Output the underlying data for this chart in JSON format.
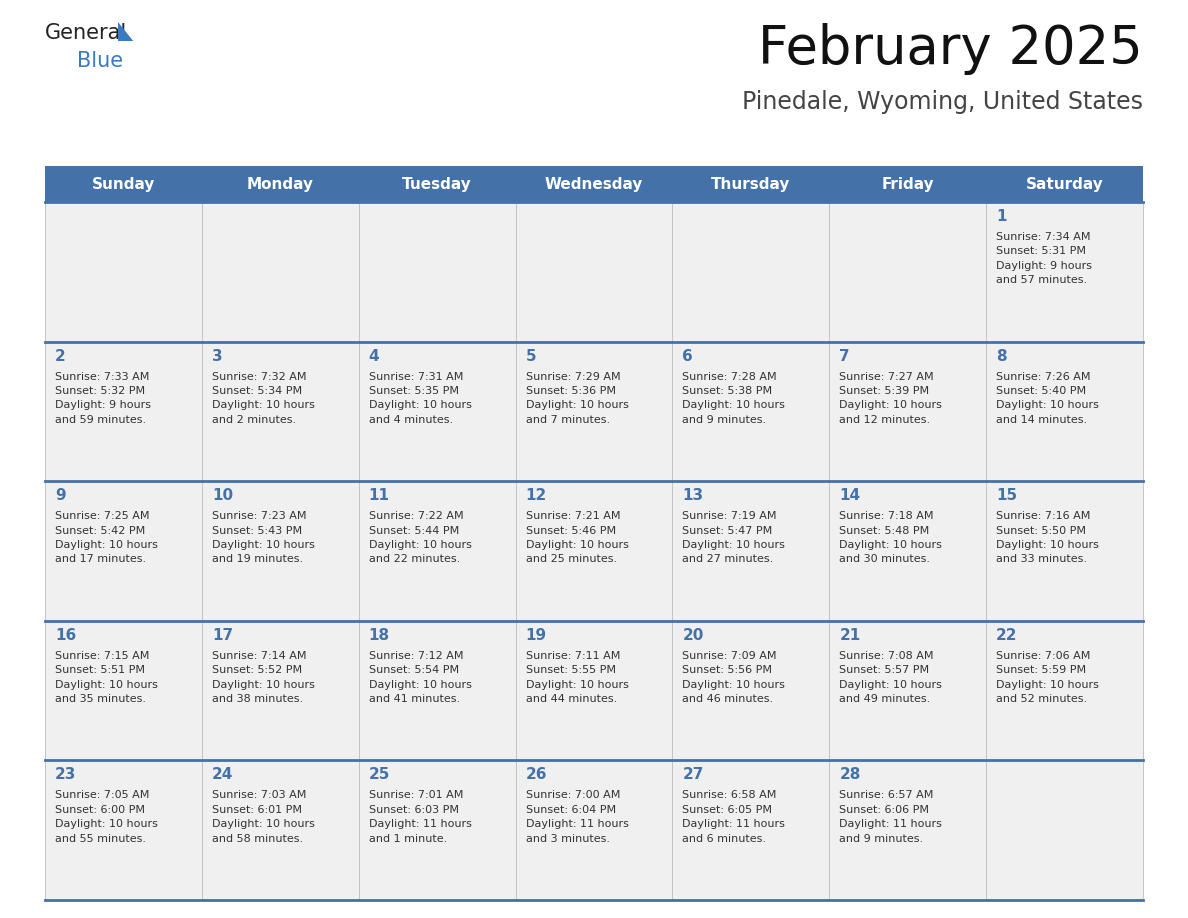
{
  "title": "February 2025",
  "subtitle": "Pinedale, Wyoming, United States",
  "header_color": "#4472a8",
  "header_text_color": "#ffffff",
  "cell_bg_even": "#f0f0f0",
  "cell_bg_odd": "#f0f0f0",
  "day_number_color": "#4472a8",
  "text_color": "#333333",
  "line_color": "#4472a8",
  "border_color": "#cccccc",
  "days_of_week": [
    "Sunday",
    "Monday",
    "Tuesday",
    "Wednesday",
    "Thursday",
    "Friday",
    "Saturday"
  ],
  "weeks": [
    [
      {
        "day": null,
        "info": null
      },
      {
        "day": null,
        "info": null
      },
      {
        "day": null,
        "info": null
      },
      {
        "day": null,
        "info": null
      },
      {
        "day": null,
        "info": null
      },
      {
        "day": null,
        "info": null
      },
      {
        "day": 1,
        "info": "Sunrise: 7:34 AM\nSunset: 5:31 PM\nDaylight: 9 hours\nand 57 minutes."
      }
    ],
    [
      {
        "day": 2,
        "info": "Sunrise: 7:33 AM\nSunset: 5:32 PM\nDaylight: 9 hours\nand 59 minutes."
      },
      {
        "day": 3,
        "info": "Sunrise: 7:32 AM\nSunset: 5:34 PM\nDaylight: 10 hours\nand 2 minutes."
      },
      {
        "day": 4,
        "info": "Sunrise: 7:31 AM\nSunset: 5:35 PM\nDaylight: 10 hours\nand 4 minutes."
      },
      {
        "day": 5,
        "info": "Sunrise: 7:29 AM\nSunset: 5:36 PM\nDaylight: 10 hours\nand 7 minutes."
      },
      {
        "day": 6,
        "info": "Sunrise: 7:28 AM\nSunset: 5:38 PM\nDaylight: 10 hours\nand 9 minutes."
      },
      {
        "day": 7,
        "info": "Sunrise: 7:27 AM\nSunset: 5:39 PM\nDaylight: 10 hours\nand 12 minutes."
      },
      {
        "day": 8,
        "info": "Sunrise: 7:26 AM\nSunset: 5:40 PM\nDaylight: 10 hours\nand 14 minutes."
      }
    ],
    [
      {
        "day": 9,
        "info": "Sunrise: 7:25 AM\nSunset: 5:42 PM\nDaylight: 10 hours\nand 17 minutes."
      },
      {
        "day": 10,
        "info": "Sunrise: 7:23 AM\nSunset: 5:43 PM\nDaylight: 10 hours\nand 19 minutes."
      },
      {
        "day": 11,
        "info": "Sunrise: 7:22 AM\nSunset: 5:44 PM\nDaylight: 10 hours\nand 22 minutes."
      },
      {
        "day": 12,
        "info": "Sunrise: 7:21 AM\nSunset: 5:46 PM\nDaylight: 10 hours\nand 25 minutes."
      },
      {
        "day": 13,
        "info": "Sunrise: 7:19 AM\nSunset: 5:47 PM\nDaylight: 10 hours\nand 27 minutes."
      },
      {
        "day": 14,
        "info": "Sunrise: 7:18 AM\nSunset: 5:48 PM\nDaylight: 10 hours\nand 30 minutes."
      },
      {
        "day": 15,
        "info": "Sunrise: 7:16 AM\nSunset: 5:50 PM\nDaylight: 10 hours\nand 33 minutes."
      }
    ],
    [
      {
        "day": 16,
        "info": "Sunrise: 7:15 AM\nSunset: 5:51 PM\nDaylight: 10 hours\nand 35 minutes."
      },
      {
        "day": 17,
        "info": "Sunrise: 7:14 AM\nSunset: 5:52 PM\nDaylight: 10 hours\nand 38 minutes."
      },
      {
        "day": 18,
        "info": "Sunrise: 7:12 AM\nSunset: 5:54 PM\nDaylight: 10 hours\nand 41 minutes."
      },
      {
        "day": 19,
        "info": "Sunrise: 7:11 AM\nSunset: 5:55 PM\nDaylight: 10 hours\nand 44 minutes."
      },
      {
        "day": 20,
        "info": "Sunrise: 7:09 AM\nSunset: 5:56 PM\nDaylight: 10 hours\nand 46 minutes."
      },
      {
        "day": 21,
        "info": "Sunrise: 7:08 AM\nSunset: 5:57 PM\nDaylight: 10 hours\nand 49 minutes."
      },
      {
        "day": 22,
        "info": "Sunrise: 7:06 AM\nSunset: 5:59 PM\nDaylight: 10 hours\nand 52 minutes."
      }
    ],
    [
      {
        "day": 23,
        "info": "Sunrise: 7:05 AM\nSunset: 6:00 PM\nDaylight: 10 hours\nand 55 minutes."
      },
      {
        "day": 24,
        "info": "Sunrise: 7:03 AM\nSunset: 6:01 PM\nDaylight: 10 hours\nand 58 minutes."
      },
      {
        "day": 25,
        "info": "Sunrise: 7:01 AM\nSunset: 6:03 PM\nDaylight: 11 hours\nand 1 minute."
      },
      {
        "day": 26,
        "info": "Sunrise: 7:00 AM\nSunset: 6:04 PM\nDaylight: 11 hours\nand 3 minutes."
      },
      {
        "day": 27,
        "info": "Sunrise: 6:58 AM\nSunset: 6:05 PM\nDaylight: 11 hours\nand 6 minutes."
      },
      {
        "day": 28,
        "info": "Sunrise: 6:57 AM\nSunset: 6:06 PM\nDaylight: 11 hours\nand 9 minutes."
      },
      {
        "day": null,
        "info": null
      }
    ]
  ],
  "logo_text_general": "General",
  "logo_text_blue": "Blue",
  "logo_color_general": "#222222",
  "logo_color_blue": "#3a7bbf"
}
